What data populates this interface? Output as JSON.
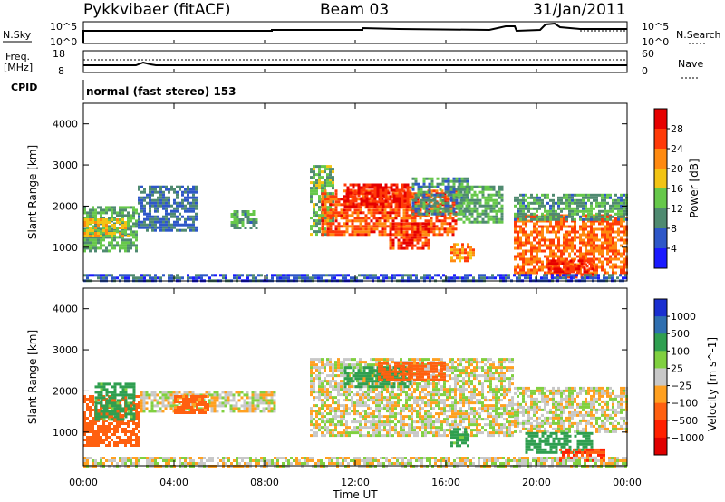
{
  "header": {
    "station": "Pykkvibaer (fitACF)",
    "beam": "Beam 03",
    "date": "31/Jan/2011"
  },
  "top_panels": {
    "nsky_label": "N.Sky",
    "nsky_tick_top": "10^5",
    "nsky_tick_bottom": "10^0",
    "nsearch_label": "N.Search",
    "nsearch_tick_top": "10^5",
    "nsearch_tick_bottom": "10^0",
    "freq_label_1": "Freq.",
    "freq_label_2": "[MHz]",
    "freq_tick_top": "18",
    "freq_tick_bottom": "8",
    "nave_label": "Nave",
    "nave_tick_top": "60",
    "nave_tick_bottom": "0",
    "cpid_label": "CPID",
    "cpid_text": "normal (fast stereo) 153"
  },
  "chart_data": [
    {
      "type": "heatmap",
      "panel": "power",
      "ylabel": "Slant Range [km]",
      "xlabel": "",
      "ylim": [
        180,
        4500
      ],
      "xlim": [
        "00:00",
        "24:00"
      ],
      "y_ticks": [
        "1000",
        "2000",
        "3000",
        "4000"
      ],
      "colorbar_label": "Power [dB]",
      "colorbar_ticks": [
        "4",
        "8",
        "12",
        "16",
        "20",
        "24",
        "28"
      ],
      "colorbar_colors": [
        "#1a1aff",
        "#2e57c8",
        "#4f8a70",
        "#66c84a",
        "#f2c414",
        "#ff8a10",
        "#ff3a08",
        "#e60000"
      ],
      "regions": [
        {
          "t0": 0.0,
          "t1": 2.4,
          "r0": 900,
          "r1": 2000,
          "v": 12
        },
        {
          "t0": 0.0,
          "t1": 2.0,
          "r0": 1300,
          "r1": 1700,
          "v": 18
        },
        {
          "t0": 2.4,
          "t1": 5.0,
          "r0": 1400,
          "r1": 2500,
          "v": 8
        },
        {
          "t0": 6.5,
          "t1": 7.6,
          "r0": 1500,
          "r1": 1900,
          "v": 11
        },
        {
          "t0": 10.0,
          "t1": 11.0,
          "r0": 1300,
          "r1": 3000,
          "v": 13
        },
        {
          "t0": 10.5,
          "t1": 16.5,
          "r0": 1300,
          "r1": 2400,
          "v": 25
        },
        {
          "t0": 11.5,
          "t1": 14.5,
          "r0": 2000,
          "r1": 2550,
          "v": 28
        },
        {
          "t0": 13.5,
          "t1": 15.2,
          "r0": 1000,
          "r1": 1600,
          "v": 27
        },
        {
          "t0": 14.5,
          "t1": 17.0,
          "r0": 1800,
          "r1": 2700,
          "v": 10
        },
        {
          "t0": 16.5,
          "t1": 18.5,
          "r0": 1600,
          "r1": 2500,
          "v": 12
        },
        {
          "t0": 16.2,
          "t1": 17.2,
          "r0": 700,
          "r1": 1100,
          "v": 22
        },
        {
          "t0": 19.0,
          "t1": 24.0,
          "r0": 400,
          "r1": 1800,
          "v": 24
        },
        {
          "t0": 20.5,
          "t1": 22.5,
          "r0": 300,
          "r1": 700,
          "v": 28
        },
        {
          "t0": 19.0,
          "t1": 24.0,
          "r0": 1700,
          "r1": 2300,
          "v": 11
        },
        {
          "t0": 0.0,
          "t1": 24.0,
          "r0": 180,
          "r1": 350,
          "v": 6
        }
      ]
    },
    {
      "type": "heatmap",
      "panel": "velocity",
      "ylabel": "Slant Range [km]",
      "xlabel": "Time UT",
      "ylim": [
        180,
        4500
      ],
      "xlim": [
        "00:00",
        "24:00"
      ],
      "y_ticks": [
        "1000",
        "2000",
        "3000",
        "4000"
      ],
      "x_ticks": [
        "00:00",
        "04:00",
        "08:00",
        "12:00",
        "16:00",
        "20:00",
        "00:00"
      ],
      "colorbar_label": "Velocity [m s^-1]",
      "colorbar_ticks": [
        "1000",
        "500",
        "100",
        "25",
        "−25",
        "−100",
        "−500",
        "−1000"
      ],
      "colorbar_colors": [
        "#1a2fd0",
        "#2f6fb0",
        "#2f9f50",
        "#80d040",
        "#c8c8c8",
        "#ffa020",
        "#ff6010",
        "#ff2000",
        "#e00000"
      ],
      "regions": [
        {
          "t0": 0.0,
          "t1": 2.5,
          "r0": 700,
          "r1": 1900,
          "v": -400
        },
        {
          "t0": 0.5,
          "t1": 2.2,
          "r0": 1300,
          "r1": 2200,
          "v": 150
        },
        {
          "t0": 2.5,
          "t1": 8.5,
          "r0": 1500,
          "r1": 2000,
          "v": 0
        },
        {
          "t0": 4.0,
          "t1": 5.5,
          "r0": 1500,
          "r1": 1900,
          "v": -150
        },
        {
          "t0": 10.0,
          "t1": 19.0,
          "r0": 900,
          "r1": 2800,
          "v": 0
        },
        {
          "t0": 11.5,
          "t1": 14.5,
          "r0": 2100,
          "r1": 2600,
          "v": 300
        },
        {
          "t0": 13.0,
          "t1": 16.0,
          "r0": 2300,
          "r1": 2700,
          "v": -200
        },
        {
          "t0": 16.2,
          "t1": 17.0,
          "r0": 700,
          "r1": 1100,
          "v": 150
        },
        {
          "t0": 19.0,
          "t1": 24.0,
          "r0": 1000,
          "r1": 2100,
          "v": 0
        },
        {
          "t0": 19.5,
          "t1": 22.5,
          "r0": 500,
          "r1": 1000,
          "v": 400
        },
        {
          "t0": 21.0,
          "t1": 23.0,
          "r0": 300,
          "r1": 600,
          "v": -500
        },
        {
          "t0": 0.0,
          "t1": 24.0,
          "r0": 180,
          "r1": 400,
          "v": 0
        }
      ]
    }
  ]
}
